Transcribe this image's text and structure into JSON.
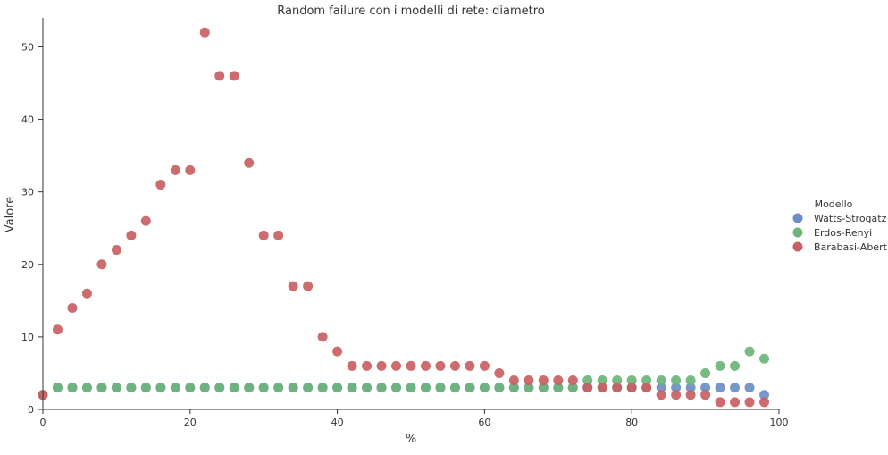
{
  "chart_data": {
    "type": "scatter",
    "title": "Random failure con i modelli di rete: diametro",
    "xlabel": "%",
    "ylabel": "Valore",
    "xlim": [
      0,
      100
    ],
    "ylim": [
      0,
      54
    ],
    "xticks": [
      0,
      20,
      40,
      60,
      80,
      100
    ],
    "yticks": [
      0,
      10,
      20,
      30,
      40,
      50
    ],
    "grid": false,
    "legend": {
      "title": "Modello",
      "placement": "right"
    },
    "x": [
      0,
      2,
      4,
      6,
      8,
      10,
      12,
      14,
      16,
      18,
      20,
      22,
      24,
      26,
      28,
      30,
      32,
      34,
      36,
      38,
      40,
      42,
      44,
      46,
      48,
      50,
      52,
      54,
      56,
      58,
      60,
      62,
      64,
      66,
      68,
      70,
      72,
      74,
      76,
      78,
      80,
      82,
      84,
      86,
      88,
      90,
      92,
      94,
      96,
      98
    ],
    "series": [
      {
        "name": "Watts-Strogatz",
        "color": "#6b8ec6",
        "values": [
          2,
          3,
          3,
          3,
          3,
          3,
          3,
          3,
          3,
          3,
          3,
          3,
          3,
          3,
          3,
          3,
          3,
          3,
          3,
          3,
          3,
          3,
          3,
          3,
          3,
          3,
          3,
          3,
          3,
          3,
          3,
          3,
          3,
          3,
          3,
          3,
          3,
          3,
          3,
          3,
          3,
          3,
          3,
          3,
          3,
          3,
          3,
          3,
          3,
          2
        ]
      },
      {
        "name": "Erdos-Renyi",
        "color": "#6cb47a",
        "values": [
          2,
          3,
          3,
          3,
          3,
          3,
          3,
          3,
          3,
          3,
          3,
          3,
          3,
          3,
          3,
          3,
          3,
          3,
          3,
          3,
          3,
          3,
          3,
          3,
          3,
          3,
          3,
          3,
          3,
          3,
          3,
          3,
          3,
          3,
          3,
          3,
          3,
          4,
          4,
          4,
          4,
          4,
          4,
          4,
          4,
          5,
          6,
          6,
          8,
          7
        ]
      },
      {
        "name": "Barabasi-Abert",
        "color": "#c95f62",
        "values": [
          2,
          11,
          14,
          16,
          20,
          22,
          24,
          26,
          31,
          33,
          33,
          52,
          46,
          46,
          34,
          24,
          24,
          17,
          17,
          10,
          8,
          6,
          6,
          6,
          6,
          6,
          6,
          6,
          6,
          6,
          6,
          5,
          4,
          4,
          4,
          4,
          4,
          3,
          3,
          3,
          3,
          3,
          2,
          2,
          2,
          2,
          1,
          1,
          1,
          1
        ]
      }
    ]
  }
}
